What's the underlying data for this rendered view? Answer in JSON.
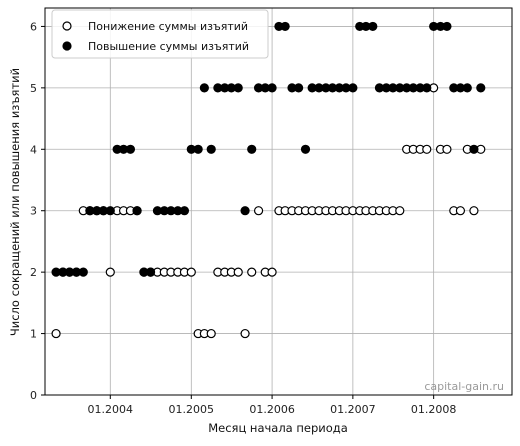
{
  "chart_data": {
    "type": "scatter",
    "xlabel": "Месяц начала периода",
    "ylabel": "Число сокращений или повышения изъятий",
    "x_range": [
      "2003-03-12",
      "2008-12-20"
    ],
    "ylim": [
      0,
      6.3
    ],
    "x_tick_labels": [
      {
        "date": "2004-01-01",
        "label": "01.2004"
      },
      {
        "date": "2005-01-01",
        "label": "01.2005"
      },
      {
        "date": "2006-01-01",
        "label": "01.2006"
      },
      {
        "date": "2007-01-01",
        "label": "01.2007"
      },
      {
        "date": "2008-01-01",
        "label": "01.2008"
      }
    ],
    "y_ticks": [
      0,
      1,
      2,
      3,
      4,
      5,
      6
    ],
    "grid": true,
    "legend_position": "top-left",
    "watermark": "capital-gain.ru",
    "series": [
      {
        "name": "Понижение суммы изъятий",
        "marker": "hollow",
        "points": [
          [
            "2003-05-01",
            1
          ],
          [
            "2003-06-01",
            2
          ],
          [
            "2003-07-01",
            2
          ],
          [
            "2003-08-01",
            2
          ],
          [
            "2003-09-01",
            3
          ],
          [
            "2003-10-01",
            3
          ],
          [
            "2003-11-01",
            3
          ],
          [
            "2003-12-01",
            3
          ],
          [
            "2004-01-01",
            2
          ],
          [
            "2004-02-01",
            3
          ],
          [
            "2004-03-01",
            3
          ],
          [
            "2004-04-01",
            3
          ],
          [
            "2004-05-01",
            3
          ],
          [
            "2004-06-01",
            2
          ],
          [
            "2004-07-01",
            2
          ],
          [
            "2004-08-01",
            2
          ],
          [
            "2004-09-01",
            2
          ],
          [
            "2004-10-01",
            2
          ],
          [
            "2004-11-01",
            2
          ],
          [
            "2004-12-01",
            2
          ],
          [
            "2005-01-01",
            2
          ],
          [
            "2005-02-01",
            1
          ],
          [
            "2005-03-01",
            1
          ],
          [
            "2005-04-01",
            1
          ],
          [
            "2005-05-01",
            2
          ],
          [
            "2005-06-01",
            2
          ],
          [
            "2005-07-01",
            2
          ],
          [
            "2005-08-01",
            2
          ],
          [
            "2005-09-01",
            1
          ],
          [
            "2005-10-01",
            2
          ],
          [
            "2005-11-01",
            3
          ],
          [
            "2005-12-01",
            2
          ],
          [
            "2006-01-01",
            2
          ],
          [
            "2006-02-01",
            3
          ],
          [
            "2006-03-01",
            3
          ],
          [
            "2006-04-01",
            3
          ],
          [
            "2006-05-01",
            3
          ],
          [
            "2006-06-01",
            3
          ],
          [
            "2006-07-01",
            3
          ],
          [
            "2006-08-01",
            3
          ],
          [
            "2006-09-01",
            3
          ],
          [
            "2006-10-01",
            3
          ],
          [
            "2006-11-01",
            3
          ],
          [
            "2006-12-01",
            3
          ],
          [
            "2007-01-01",
            3
          ],
          [
            "2007-02-01",
            3
          ],
          [
            "2007-03-01",
            3
          ],
          [
            "2007-04-01",
            3
          ],
          [
            "2007-05-01",
            3
          ],
          [
            "2007-06-01",
            3
          ],
          [
            "2007-07-01",
            3
          ],
          [
            "2007-08-01",
            3
          ],
          [
            "2007-09-01",
            4
          ],
          [
            "2007-10-01",
            4
          ],
          [
            "2007-11-01",
            4
          ],
          [
            "2007-12-01",
            4
          ],
          [
            "2008-01-01",
            5
          ],
          [
            "2008-02-01",
            4
          ],
          [
            "2008-03-01",
            4
          ],
          [
            "2008-04-01",
            3
          ],
          [
            "2008-05-01",
            3
          ],
          [
            "2008-06-01",
            4
          ],
          [
            "2008-07-01",
            3
          ],
          [
            "2008-08-01",
            4
          ]
        ]
      },
      {
        "name": "Повышение суммы изъятий",
        "marker": "filled",
        "points": [
          [
            "2003-05-01",
            2
          ],
          [
            "2003-06-01",
            2
          ],
          [
            "2003-07-01",
            2
          ],
          [
            "2003-08-01",
            2
          ],
          [
            "2003-09-01",
            2
          ],
          [
            "2003-10-01",
            3
          ],
          [
            "2003-11-01",
            3
          ],
          [
            "2003-12-01",
            3
          ],
          [
            "2004-01-01",
            3
          ],
          [
            "2004-02-01",
            4
          ],
          [
            "2004-03-01",
            4
          ],
          [
            "2004-04-01",
            4
          ],
          [
            "2004-05-01",
            3
          ],
          [
            "2004-06-01",
            2
          ],
          [
            "2004-07-01",
            2
          ],
          [
            "2004-08-01",
            3
          ],
          [
            "2004-09-01",
            3
          ],
          [
            "2004-10-01",
            3
          ],
          [
            "2004-11-01",
            3
          ],
          [
            "2004-12-01",
            3
          ],
          [
            "2005-01-01",
            4
          ],
          [
            "2005-02-01",
            4
          ],
          [
            "2005-03-01",
            5
          ],
          [
            "2005-04-01",
            4
          ],
          [
            "2005-05-01",
            5
          ],
          [
            "2005-06-01",
            5
          ],
          [
            "2005-07-01",
            5
          ],
          [
            "2005-08-01",
            5
          ],
          [
            "2005-09-01",
            3
          ],
          [
            "2005-10-01",
            4
          ],
          [
            "2005-11-01",
            5
          ],
          [
            "2005-12-01",
            5
          ],
          [
            "2006-01-01",
            5
          ],
          [
            "2006-02-01",
            6
          ],
          [
            "2006-03-01",
            6
          ],
          [
            "2006-04-01",
            5
          ],
          [
            "2006-05-01",
            5
          ],
          [
            "2006-06-01",
            4
          ],
          [
            "2006-07-01",
            5
          ],
          [
            "2006-08-01",
            5
          ],
          [
            "2006-09-01",
            5
          ],
          [
            "2006-10-01",
            5
          ],
          [
            "2006-11-01",
            5
          ],
          [
            "2006-12-01",
            5
          ],
          [
            "2007-01-01",
            5
          ],
          [
            "2007-02-01",
            6
          ],
          [
            "2007-03-01",
            6
          ],
          [
            "2007-04-01",
            6
          ],
          [
            "2007-05-01",
            5
          ],
          [
            "2007-06-01",
            5
          ],
          [
            "2007-07-01",
            5
          ],
          [
            "2007-08-01",
            5
          ],
          [
            "2007-09-01",
            5
          ],
          [
            "2007-10-01",
            5
          ],
          [
            "2007-11-01",
            5
          ],
          [
            "2007-12-01",
            5
          ],
          [
            "2008-01-01",
            6
          ],
          [
            "2008-02-01",
            6
          ],
          [
            "2008-03-01",
            6
          ],
          [
            "2008-04-01",
            5
          ],
          [
            "2008-05-01",
            5
          ],
          [
            "2008-06-01",
            5
          ],
          [
            "2008-07-01",
            4
          ],
          [
            "2008-08-01",
            5
          ]
        ]
      }
    ]
  }
}
